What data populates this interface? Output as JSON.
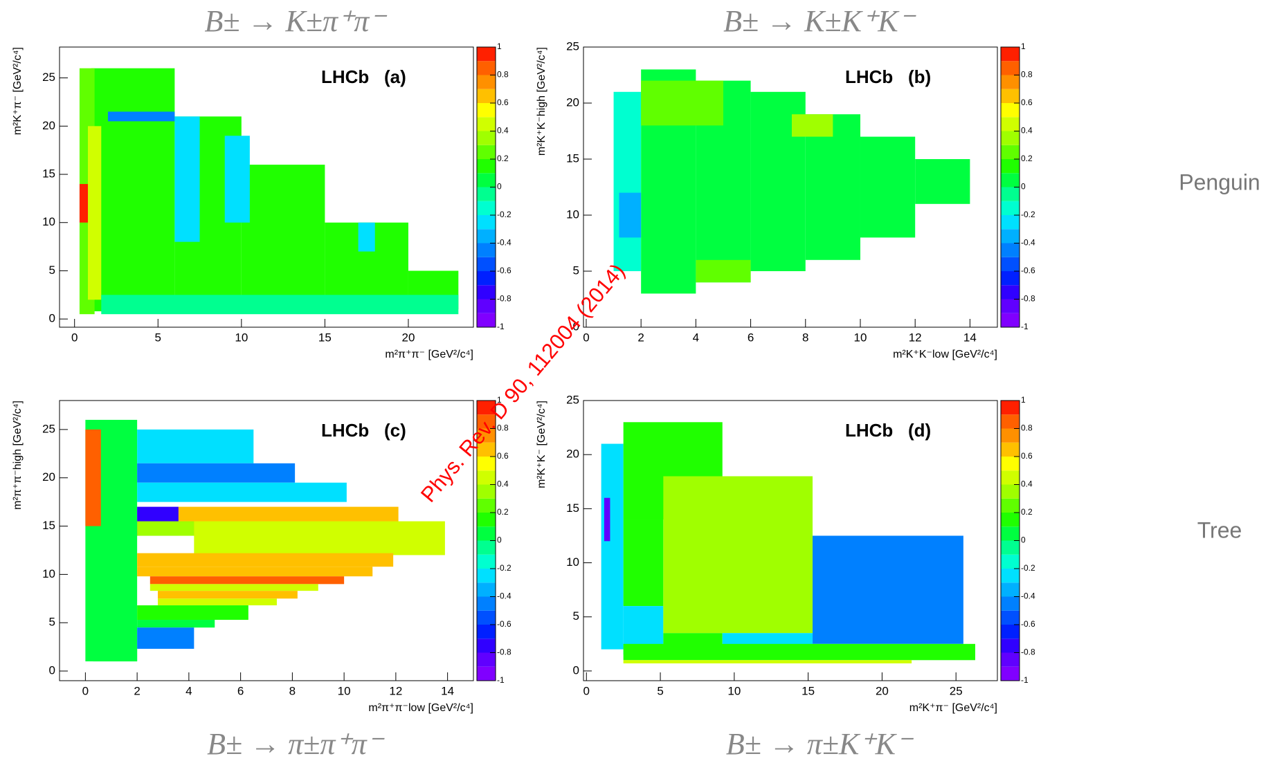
{
  "chart_data": [
    {
      "type": "heatmap",
      "title": "B± → K±π⁺π⁻",
      "x_label": "m²π⁺π⁻ [GeV²/c⁴]",
      "y_label": "m²K⁺π⁻ [GeV²/c⁴]",
      "annotation": "LHCb   (a)",
      "xlim": [
        -0.9,
        23.9
      ],
      "ylim": [
        -0.85,
        28.2
      ],
      "xticks": [
        0,
        5,
        10,
        15,
        20
      ],
      "yticks": [
        0,
        5,
        10,
        15,
        20,
        25
      ],
      "zlim": [
        -1,
        1
      ],
      "zticks": [
        -1,
        -0.8,
        -0.6,
        -0.4,
        -0.2,
        0,
        0.2,
        0.4,
        0.6,
        0.8,
        1
      ],
      "colors": [
        "#8000ff",
        "#6000ff",
        "#3000ff",
        "#0020ff",
        "#0050ff",
        "#0080ff",
        "#00b0ff",
        "#00e0ff",
        "#00ffd0",
        "#00ff90",
        "#00ff40",
        "#20ff00",
        "#60ff00",
        "#a0ff00",
        "#d0ff00",
        "#ffff00",
        "#ffc000",
        "#ff9000",
        "#ff6000",
        "#ff2000"
      ],
      "cells": [
        {
          "x": [
            1,
            6
          ],
          "y": [
            0.8,
            26
          ],
          "value": 0.1
        },
        {
          "x": [
            6,
            10
          ],
          "y": [
            0.8,
            21
          ],
          "value": 0.1
        },
        {
          "x": [
            10,
            15
          ],
          "y": [
            0.8,
            16
          ],
          "value": 0.1
        },
        {
          "x": [
            15,
            20
          ],
          "y": [
            0.8,
            10
          ],
          "value": 0.1
        },
        {
          "x": [
            20,
            23
          ],
          "y": [
            1,
            5
          ],
          "value": 0.1
        },
        {
          "x": [
            0.3,
            1.2
          ],
          "y": [
            0.5,
            26
          ],
          "value": 0.2
        },
        {
          "x": [
            0.3,
            0.8
          ],
          "y": [
            10,
            14
          ],
          "value": 0.9
        },
        {
          "x": [
            0.8,
            1.6
          ],
          "y": [
            2,
            20
          ],
          "value": 0.45
        },
        {
          "x": [
            2,
            6
          ],
          "y": [
            20.5,
            21.5
          ],
          "value": -0.5
        },
        {
          "x": [
            6,
            7.5
          ],
          "y": [
            8,
            21
          ],
          "value": -0.3
        },
        {
          "x": [
            9,
            10.5
          ],
          "y": [
            10,
            19
          ],
          "value": -0.3
        },
        {
          "x": [
            17,
            18
          ],
          "y": [
            7,
            10
          ],
          "value": -0.3
        },
        {
          "x": [
            1.6,
            23
          ],
          "y": [
            0.5,
            2.5
          ],
          "value": -0.05
        }
      ]
    },
    {
      "type": "heatmap",
      "title": "B± → K±K⁺K⁻",
      "x_label": "m²K⁺K⁻low [GeV²/c⁴]",
      "y_label": "m²K⁺K⁻high [GeV²/c⁴]",
      "annotation": "LHCb   (b)",
      "xlim": [
        -0.1,
        15
      ],
      "ylim": [
        0,
        25
      ],
      "xticks": [
        0,
        2,
        4,
        6,
        8,
        10,
        12,
        14
      ],
      "yticks": [
        0,
        5,
        10,
        15,
        20,
        25
      ],
      "zlim": [
        -1,
        1
      ],
      "zticks": [
        -1,
        -0.8,
        -0.6,
        -0.4,
        -0.2,
        0,
        0.2,
        0.4,
        0.6,
        0.8,
        1
      ],
      "colors": [
        "#8000ff",
        "#6000ff",
        "#3000ff",
        "#0020ff",
        "#0050ff",
        "#0080ff",
        "#00b0ff",
        "#00e0ff",
        "#00ffd0",
        "#00ff90",
        "#00ff40",
        "#20ff00",
        "#60ff00",
        "#a0ff00",
        "#d0ff00",
        "#ffff00",
        "#ffc000",
        "#ff9000",
        "#ff6000",
        "#ff2000"
      ],
      "cells": [
        {
          "x": [
            1,
            2
          ],
          "y": [
            5,
            21
          ],
          "value": -0.15
        },
        {
          "x": [
            2,
            4
          ],
          "y": [
            3,
            23
          ],
          "value": 0.05
        },
        {
          "x": [
            4,
            6
          ],
          "y": [
            4,
            22
          ],
          "value": 0.05
        },
        {
          "x": [
            6,
            8
          ],
          "y": [
            5,
            21
          ],
          "value": 0.05
        },
        {
          "x": [
            8,
            10
          ],
          "y": [
            6,
            19
          ],
          "value": 0.05
        },
        {
          "x": [
            10,
            12
          ],
          "y": [
            8,
            17
          ],
          "value": 0.05
        },
        {
          "x": [
            12,
            14
          ],
          "y": [
            11,
            15
          ],
          "value": 0.05
        },
        {
          "x": [
            7.5,
            9
          ],
          "y": [
            17,
            19
          ],
          "value": 0.35
        },
        {
          "x": [
            1.2,
            2
          ],
          "y": [
            8,
            12
          ],
          "value": -0.4
        },
        {
          "x": [
            2,
            5
          ],
          "y": [
            18,
            22
          ],
          "value": 0.2
        },
        {
          "x": [
            4,
            6
          ],
          "y": [
            4,
            6
          ],
          "value": 0.2
        }
      ]
    },
    {
      "type": "heatmap",
      "title": "B± → π±π⁺π⁻",
      "x_label": "m²π⁺π⁻low [GeV²/c⁴]",
      "y_label": "m²π⁺π⁻high [GeV²/c⁴]",
      "annotation": "LHCb   (c)",
      "xlim": [
        -1,
        15
      ],
      "ylim": [
        -1,
        28
      ],
      "xticks": [
        0,
        2,
        4,
        6,
        8,
        10,
        12,
        14
      ],
      "yticks": [
        0,
        5,
        10,
        15,
        20,
        25
      ],
      "zlim": [
        -1,
        1
      ],
      "zticks": [
        -1,
        -0.8,
        -0.6,
        -0.4,
        -0.2,
        0,
        0.2,
        0.4,
        0.6,
        0.8,
        1
      ],
      "colors": [
        "#8000ff",
        "#6000ff",
        "#3000ff",
        "#0020ff",
        "#0050ff",
        "#0080ff",
        "#00b0ff",
        "#00e0ff",
        "#00ffd0",
        "#00ff90",
        "#00ff40",
        "#20ff00",
        "#60ff00",
        "#a0ff00",
        "#d0ff00",
        "#ffff00",
        "#ffc000",
        "#ff9000",
        "#ff6000",
        "#ff2000"
      ],
      "cells": [
        {
          "x": [
            0,
            2
          ],
          "y": [
            1,
            26
          ],
          "value": 0.0
        },
        {
          "x": [
            0,
            0.6
          ],
          "y": [
            15,
            25
          ],
          "value": 0.8
        },
        {
          "x": [
            2,
            6.5
          ],
          "y": [
            21.5,
            25
          ],
          "value": -0.3
        },
        {
          "x": [
            2,
            8.1
          ],
          "y": [
            19.5,
            21.5
          ],
          "value": -0.45
        },
        {
          "x": [
            2,
            10.1
          ],
          "y": [
            17.5,
            19.5
          ],
          "value": -0.25
        },
        {
          "x": [
            2,
            3.6
          ],
          "y": [
            14,
            17
          ],
          "value": -0.75
        },
        {
          "x": [
            3.6,
            12.1
          ],
          "y": [
            14,
            17
          ],
          "value": 0.65
        },
        {
          "x": [
            4.2,
            13.9
          ],
          "y": [
            12,
            15.5
          ],
          "value": 0.45
        },
        {
          "x": [
            2,
            4.2
          ],
          "y": [
            14,
            15.5
          ],
          "value": 0.35
        },
        {
          "x": [
            2,
            11.9
          ],
          "y": [
            10.8,
            12.2
          ],
          "value": 0.65
        },
        {
          "x": [
            2,
            11.1
          ],
          "y": [
            9.8,
            10.8
          ],
          "value": 0.65
        },
        {
          "x": [
            2.5,
            10
          ],
          "y": [
            9,
            9.8
          ],
          "value": 0.85
        },
        {
          "x": [
            2.5,
            9
          ],
          "y": [
            8.3,
            9
          ],
          "value": 0.45
        },
        {
          "x": [
            2.8,
            8.2
          ],
          "y": [
            7.5,
            8.3
          ],
          "value": 0.65
        },
        {
          "x": [
            2.8,
            7.4
          ],
          "y": [
            6.8,
            7.5
          ],
          "value": 0.45
        },
        {
          "x": [
            2,
            6.3
          ],
          "y": [
            5.3,
            6.8
          ],
          "value": 0.15
        },
        {
          "x": [
            2,
            5
          ],
          "y": [
            4.5,
            5.3
          ],
          "value": 0.05
        },
        {
          "x": [
            2,
            4.2
          ],
          "y": [
            2.3,
            4.5
          ],
          "value": -0.45
        },
        {
          "x": [
            0.3,
            2
          ],
          "y": [
            1,
            2.3
          ],
          "value": 0.0
        }
      ]
    },
    {
      "type": "heatmap",
      "title": "B± → π±K⁺K⁻",
      "x_label": "m²K⁺π⁻ [GeV²/c⁴]",
      "y_label": "m²K⁺K⁻ [GeV²/c⁴]",
      "annotation": "LHCb   (d)",
      "xlim": [
        -0.2,
        27.8
      ],
      "ylim": [
        -0.9,
        25
      ],
      "xticks": [
        0,
        5,
        10,
        15,
        20,
        25
      ],
      "yticks": [
        0,
        5,
        10,
        15,
        20,
        25
      ],
      "zlim": [
        -1,
        1
      ],
      "zticks": [
        -1,
        -0.8,
        -0.6,
        -0.4,
        -0.2,
        0,
        0.2,
        0.4,
        0.6,
        0.8,
        1
      ],
      "colors": [
        "#8000ff",
        "#6000ff",
        "#3000ff",
        "#0020ff",
        "#0050ff",
        "#0080ff",
        "#00b0ff",
        "#00e0ff",
        "#00ffd0",
        "#00ff90",
        "#00ff40",
        "#20ff00",
        "#60ff00",
        "#a0ff00",
        "#d0ff00",
        "#ffff00",
        "#ffc000",
        "#ff9000",
        "#ff6000",
        "#ff2000"
      ],
      "cells": [
        {
          "x": [
            1,
            2.5
          ],
          "y": [
            2,
            21
          ],
          "value": -0.3
        },
        {
          "x": [
            1.2,
            1.6
          ],
          "y": [
            12,
            16
          ],
          "value": -0.8
        },
        {
          "x": [
            2.5,
            9.2
          ],
          "y": [
            14,
            23
          ],
          "value": 0.1
        },
        {
          "x": [
            2.5,
            5.2
          ],
          "y": [
            6,
            14
          ],
          "value": 0.1
        },
        {
          "x": [
            2.5,
            5.2
          ],
          "y": [
            1.5,
            6
          ],
          "value": -0.3
        },
        {
          "x": [
            5.2,
            15.3
          ],
          "y": [
            3.5,
            18
          ],
          "value": 0.3
        },
        {
          "x": [
            15.3,
            25.5
          ],
          "y": [
            2.5,
            12.5
          ],
          "value": -0.5
        },
        {
          "x": [
            5.2,
            9.2
          ],
          "y": [
            1.5,
            3.5
          ],
          "value": 0.1
        },
        {
          "x": [
            9.2,
            15.3
          ],
          "y": [
            2,
            3.5
          ],
          "value": -0.3
        },
        {
          "x": [
            2.5,
            26.3
          ],
          "y": [
            1,
            2.5
          ],
          "value": 0.15
        },
        {
          "x": [
            2.5,
            22
          ],
          "y": [
            0.7,
            1
          ],
          "value": 0.4
        }
      ]
    }
  ],
  "row_labels": [
    "Penguin",
    "Tree"
  ],
  "watermark": "Phys. Rev. D 90, 112004 (2014)"
}
